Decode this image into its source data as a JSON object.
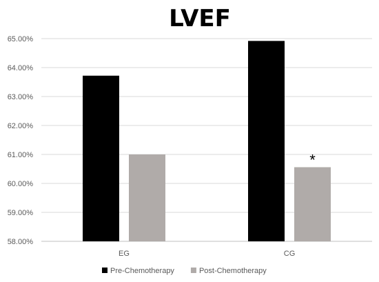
{
  "chart_data": {
    "type": "bar",
    "title": "LVEF",
    "categories": [
      "EG",
      "CG"
    ],
    "series": [
      {
        "name": "Pre-Chemotherapy",
        "values": [
          63.72,
          64.92
        ],
        "color": "#000000"
      },
      {
        "name": "Post-Chemotherapy",
        "values": [
          61.0,
          60.56
        ],
        "color": "#b0aba9"
      }
    ],
    "ylim": [
      58,
      65
    ],
    "ytick_step": 1,
    "ytick_labels": [
      "58.00%",
      "59.00%",
      "60.00%",
      "61.00%",
      "62.00%",
      "63.00%",
      "64.00%",
      "65.00%"
    ],
    "annotations": [
      {
        "category": "CG",
        "series": "Post-Chemotherapy",
        "text": "*"
      }
    ],
    "grid": true,
    "legend": "bottom"
  }
}
